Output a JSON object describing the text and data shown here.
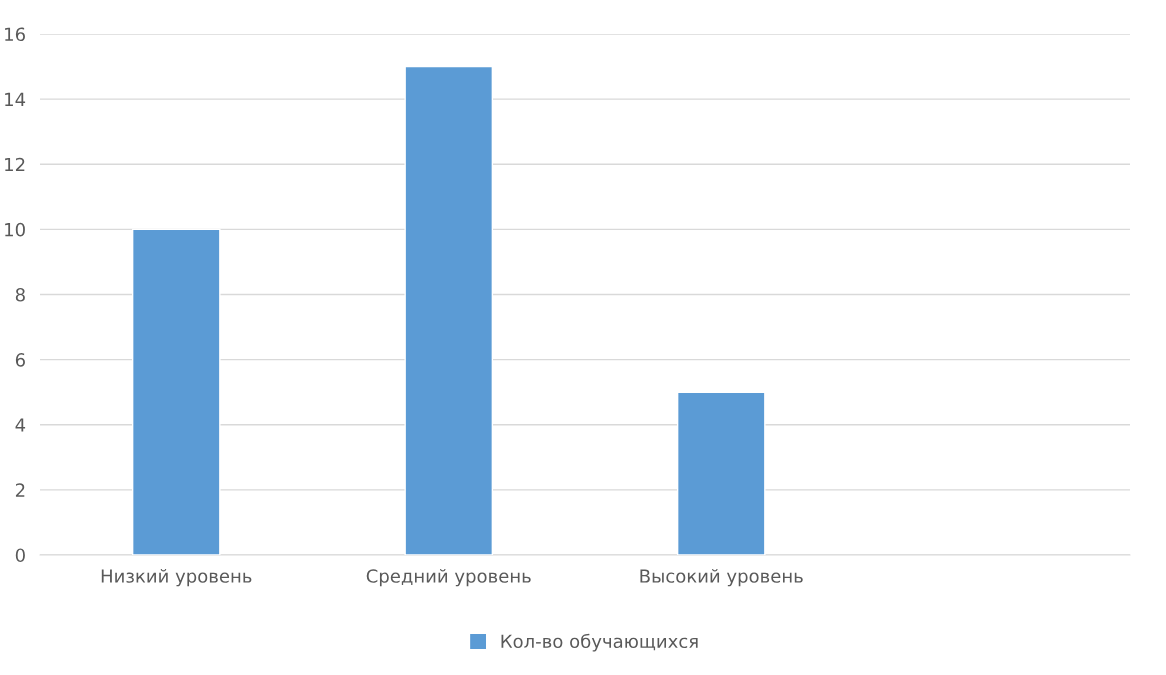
{
  "chart_data": {
    "type": "bar",
    "categories": [
      "Низкий уровень",
      "Средний уровень",
      "Высокий уровень",
      null
    ],
    "series": [
      {
        "name": "Кол-во обучающихся",
        "color": "#5b9bd5",
        "values": [
          10,
          15,
          5,
          null
        ]
      }
    ],
    "ylim": [
      0,
      16
    ],
    "yticks": [
      0,
      2,
      4,
      6,
      8,
      10,
      12,
      14,
      16
    ],
    "grid": "y",
    "legend": "bottom"
  }
}
